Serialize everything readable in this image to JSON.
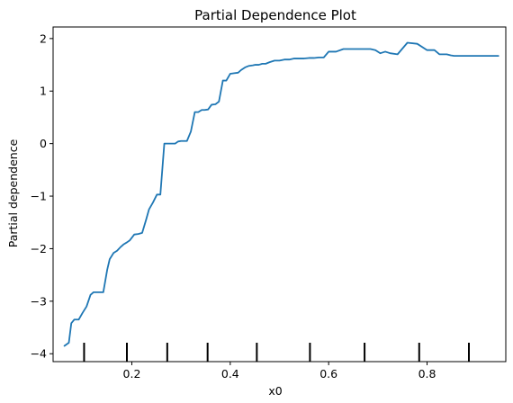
{
  "chart_data": {
    "type": "line",
    "title": "Partial Dependence Plot",
    "xlabel": "x0",
    "ylabel": "Partial dependence",
    "xlim": [
      0.04,
      0.96
    ],
    "ylim": [
      -4.15,
      2.22
    ],
    "xticks": [
      0.2,
      0.4,
      0.6,
      0.8
    ],
    "xtick_labels": [
      "0.2",
      "0.4",
      "0.6",
      "0.8"
    ],
    "yticks": [
      -4,
      -3,
      -2,
      -1,
      0,
      1,
      2
    ],
    "ytick_labels": [
      "−4",
      "−3",
      "−2",
      "−1",
      "0",
      "1",
      "2"
    ],
    "grid": false,
    "series": [
      {
        "color": "#1f77b4",
        "x": [
          0.063,
          0.072,
          0.077,
          0.083,
          0.092,
          0.1,
          0.108,
          0.116,
          0.122,
          0.127,
          0.134,
          0.142,
          0.15,
          0.155,
          0.163,
          0.17,
          0.177,
          0.183,
          0.19,
          0.196,
          0.205,
          0.213,
          0.221,
          0.229,
          0.235,
          0.243,
          0.251,
          0.258,
          0.266,
          0.274,
          0.282,
          0.288,
          0.294,
          0.3,
          0.307,
          0.312,
          0.32,
          0.328,
          0.335,
          0.342,
          0.348,
          0.355,
          0.362,
          0.37,
          0.377,
          0.385,
          0.392,
          0.4,
          0.408,
          0.416,
          0.422,
          0.43,
          0.438,
          0.446,
          0.451,
          0.458,
          0.465,
          0.472,
          0.48,
          0.49,
          0.5,
          0.51,
          0.52,
          0.53,
          0.54,
          0.55,
          0.56,
          0.57,
          0.58,
          0.59,
          0.6,
          0.615,
          0.63,
          0.645,
          0.66,
          0.675,
          0.685,
          0.695,
          0.705,
          0.715,
          0.725,
          0.74,
          0.76,
          0.78,
          0.8,
          0.815,
          0.825,
          0.832,
          0.84,
          0.848,
          0.855,
          0.862,
          0.87,
          0.878,
          0.885,
          0.895,
          0.91,
          0.925,
          0.935,
          0.945
        ],
        "y": [
          -3.85,
          -3.79,
          -3.42,
          -3.35,
          -3.35,
          -3.22,
          -3.1,
          -2.88,
          -2.83,
          -2.83,
          -2.83,
          -2.83,
          -2.4,
          -2.2,
          -2.08,
          -2.04,
          -1.97,
          -1.92,
          -1.88,
          -1.84,
          -1.73,
          -1.72,
          -1.7,
          -1.45,
          -1.25,
          -1.12,
          -0.97,
          -0.97,
          0.0,
          0.0,
          0.0,
          0.0,
          0.04,
          0.05,
          0.05,
          0.05,
          0.23,
          0.6,
          0.6,
          0.64,
          0.64,
          0.65,
          0.74,
          0.75,
          0.8,
          1.2,
          1.2,
          1.33,
          1.34,
          1.35,
          1.4,
          1.45,
          1.48,
          1.49,
          1.5,
          1.5,
          1.52,
          1.52,
          1.55,
          1.58,
          1.58,
          1.6,
          1.6,
          1.62,
          1.62,
          1.62,
          1.63,
          1.63,
          1.64,
          1.64,
          1.75,
          1.75,
          1.8,
          1.8,
          1.8,
          1.8,
          1.8,
          1.78,
          1.72,
          1.75,
          1.72,
          1.7,
          1.92,
          1.9,
          1.78,
          1.78,
          1.7,
          1.7,
          1.7,
          1.68,
          1.67,
          1.67,
          1.67,
          1.67,
          1.67,
          1.67,
          1.67,
          1.67,
          1.67,
          1.67
        ]
      }
    ],
    "rug_deciles": [
      0.103,
      0.19,
      0.272,
      0.354,
      0.454,
      0.562,
      0.673,
      0.784,
      0.885
    ]
  }
}
